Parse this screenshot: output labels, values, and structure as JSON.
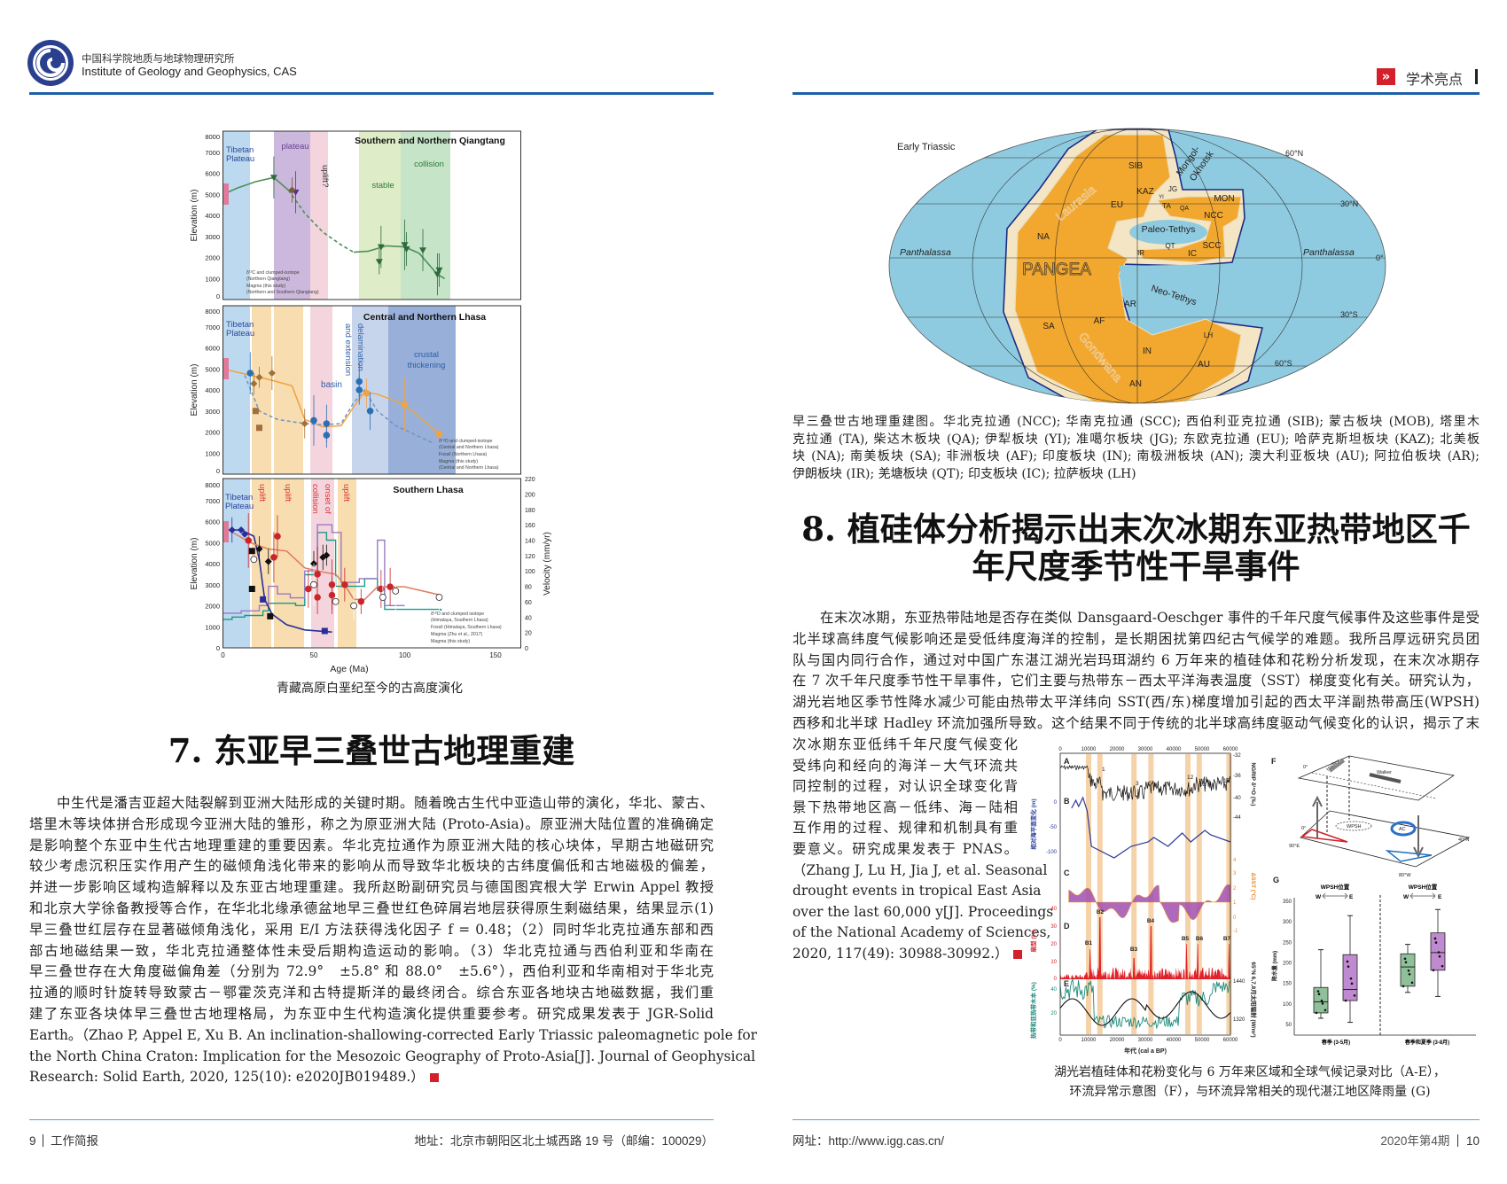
{
  "left": {
    "header": {
      "org_cn": "中国科学院地质与地球物理研究所",
      "org_en": "Institute of Geology and Geophysics, CAS"
    },
    "figure": {
      "elevation_ticks": [
        "0",
        "1000",
        "2000",
        "3000",
        "4000",
        "5000",
        "6000",
        "7000",
        "8000"
      ],
      "velocity_ticks": [
        "0",
        "20",
        "40",
        "60",
        "80",
        "100",
        "120",
        "140",
        "160",
        "180",
        "200",
        "220"
      ],
      "age_ticks": [
        "0",
        "50",
        "100",
        "150"
      ],
      "ylabel": "Elevation (m)",
      "xlabel": "Age (Ma)",
      "velocity_label": "Velocity (mm/yr)",
      "panel1": {
        "title": "Southern and Northern Qiangtang",
        "tp1": "Tibetan",
        "tp2": "Plateau",
        "plateau": "plateau",
        "uplift": "uplift?",
        "stable": "stable",
        "collision": "collision",
        "legend": [
          "δ¹³C and clumped-isotope",
          "(Northern Qiangtang)",
          "Magma (this study)",
          "(Northern and Southern Qiangtang)"
        ]
      },
      "panel2": {
        "title": "Central and Northern Lhasa",
        "tp1": "Tibetan",
        "tp2": "Plateau",
        "basin": "basin",
        "delam1": "delamination",
        "delam2": "and extension",
        "crust1": "crustal",
        "crust2": "thickening",
        "legend": [
          "δ¹⁸O and clumped-isotope",
          "(Central and Northern Lhasa)",
          "Fossil (Northern Lhasa)",
          "Magma (this study)",
          "(Central and Northern Lhasa)"
        ]
      },
      "panel3": {
        "title": "Southern Lhasa",
        "tp1": "Tibetan",
        "tp2": "Plateau",
        "uplift": "uplift",
        "onset1": "onset of",
        "onset2": "collision",
        "legend": [
          "δ¹⁸O and clumped isotope",
          "(Himalaya, Southern Lhasa)",
          "Fossil (Himalaya, Southern Lhasa)",
          "Magma (Zhu et al., 2017)",
          "Magma (this study)"
        ]
      }
    },
    "caption": "青藏高原白垩纪至今的古高度演化",
    "heading": "7. 东亚早三叠世古地理重建",
    "paragraph": [
      "中生代是潘吉亚超大陆裂解到亚洲大陆形成的关键时期。随着晚古生代中亚造山带的演化，华北、蒙古、",
      "塔里木等块体拼合形成现今亚洲大陆的雏形，称之为原亚洲大陆 (Proto-Asia)。原亚洲大陆位置的准确确定",
      "是影响整个东亚中生代古地理重建的重要因素。华北克拉通作为原亚洲大陆的核心块体，早期古地磁研究",
      "较少考虑沉积压实作用产生的磁倾角浅化带来的影响从而导致华北板块的古纬度偏低和古地磁极的偏差，",
      "并进一步影响区域构造解释以及东亚古地理重建。我所赵盼副研究员与德国图宾根大学 Erwin Appel 教授",
      "和北京大学徐备教授等合作，在华北北缘承德盆地早三叠世红色碎屑岩地层获得原生剩磁结果，结果显示(1)",
      "早三叠世红层存在显著磁倾角浅化，采用 E/I 方法获得浅化因子 f = 0.48；（2）同时华北克拉通东部和西",
      "部古地磁结果一致，华北克拉通整体性未受后期构造运动的影响。（3）华北克拉通与西伯利亚和华南在",
      "早三叠世存在大角度磁偏角差（分别为 72.9°　±5.8° 和 88.0°　±5.6°），西伯利亚和华南相对于华北克",
      "拉通的顺时针旋转导致蒙古－鄂霍茨克洋和古特提斯洋的最终闭合。综合东亚各地块古地磁数据，我们重",
      "建了东亚各块体早三叠世古地理格局，为东亚中生代构造演化提供重要参考。研究成果发表于 JGR-Solid",
      "Earth。（Zhao P, Appel E, Xu B. An inclination-shallowing-corrected Early Triassic paleomagnetic pole for",
      "the North China Craton: Implication for the Mesozoic Geography of Proto-Asia[J]. Journal of Geophysical",
      "Research: Solid Earth, 2020, 125(10): e2020JB019489.）"
    ],
    "footer": {
      "page_number": "9",
      "section": "工作简报",
      "address": "地址：北京市朝阳区北土城西路 19 号（邮编：100029）"
    }
  },
  "right": {
    "header": {
      "section": "学术亮点",
      "icon": "double-chevron-right-icon",
      "accent_color": "#d3202a"
    },
    "map": {
      "title": "Early Triassic",
      "latitudes": [
        "60°N",
        "30°N",
        "0°",
        "30°S",
        "60°S"
      ],
      "oceans": [
        "Panthalassa",
        "Panthalassa",
        "Paleo-Tethys",
        "Neo-Tethys",
        "Mongol-",
        "Okhotsk"
      ],
      "supercontinents": [
        "PANGEA",
        "Laurasia",
        "Gondwana"
      ],
      "blocks": [
        "SIB",
        "KAZ",
        "YI",
        "JG",
        "TA",
        "QA",
        "MON",
        "NCC",
        "EU",
        "NA",
        "SCC",
        "IR",
        "QT",
        "IC",
        "AR",
        "SA",
        "AF",
        "IN",
        "AU",
        "AN",
        "LH"
      ]
    },
    "map_caption": [
      "早三叠世古地理重建图。华北克拉通 (NCC); 华南克拉通 (SCC); 西伯利亚克拉通 (SIB); 蒙古板块 (MOB), 塔里木",
      "克拉通 (TA), 柴达木板块 (QA); 伊犁板块 (YI); 准噶尔板块 (JG); 东欧克拉通 (EU); 哈萨克斯坦板块 (KAZ); 北美板",
      "块 (NA); 南美板块 (SA); 非洲板块 (AF); 印度板块 (IN); 南极洲板块 (AN); 澳大利亚板块 (AU); 阿拉伯板块 (AR);",
      "伊朗板块 (IR); 羌塘板块 (QT); 印支板块 (IC); 拉萨板块 (LH)"
    ],
    "heading": [
      "8. 植硅体分析揭示出末次冰期东亚热带地区千",
      "年尺度季节性干旱事件"
    ],
    "paragraph": [
      "在末次冰期，东亚热带陆地是否存在类似 Dansgaard-Oeschger 事件的千年尺度气候事件及这些事件是受",
      "北半球高纬度气候影响还是受低纬度海洋的控制，是长期困扰第四纪古气候学的难题。我所吕厚远研究员团",
      "队与国内同行合作，通过对中国广东湛江湖光岩玛珥湖约 6 万年来的植硅体和花粉分析发现，在末次冰期存",
      "在 7 次千年尺度季节性干旱事件，它们主要与热带东－西太平洋海表温度（SST）梯度变化有关。研究认为，",
      "湖光岩地区季节性降水减少可能由热带太平洋纬向 SST(西/东)梯度增加引起的西太平洋副热带高压(WPSH)",
      "西移和北半球 Hadley 环流加强所导致。这个结果不同于传统的北半球高纬度驱动气候变化的认识，揭示了末"
    ],
    "column": [
      "次冰期东亚低纬千年尺度气候变化",
      "受纬向和经向的海洋－大气环流共",
      "同控制的过程，对认识全球变化背",
      "景下热带地区高－低纬、海－陆相",
      "互作用的过程、规律和机制具有重",
      "要意义。研究成果发表于 PNAS。",
      "（Zhang J, Lu H, Jia J, et al. Seasonal",
      "drought events in tropical East Asia",
      "over the last 60,000 y[J]. Proceedings",
      "of the National Academy of Sciences,",
      "2020, 117(49): 30988-30992.）"
    ],
    "figure": {
      "x_ticks": [
        "0",
        "10000",
        "20000",
        "30000",
        "40000",
        "50000",
        "60000"
      ],
      "xlabel": "年代 (cal a BP)",
      "panels": [
        "A",
        "B",
        "C",
        "D",
        "E",
        "F",
        "G"
      ],
      "events": [
        "1",
        "3",
        "5",
        "12",
        "13",
        "17"
      ],
      "drought_events": [
        "B1",
        "B2",
        "B3",
        "B4",
        "B5",
        "B6",
        "B7"
      ],
      "sea_level_ticks": [
        "0",
        "-50",
        "-100"
      ],
      "sea_level_label": "相对海平面变化 (m)",
      "phytolith_ticks": [
        "40",
        "30",
        "20",
        "10",
        "0"
      ],
      "phytolith_label": "扇型 (%)",
      "woody_ticks": [
        "40",
        "20"
      ],
      "woody_label": "热带和亚热带木本 (%)",
      "ngrip_ticks": [
        "-32",
        "-36",
        "-40",
        "-44"
      ],
      "ngrip_label": "NGRIP δ¹⁸O (‰)",
      "sst_ticks": [
        "4",
        "3",
        "2",
        "1",
        "0",
        "-1"
      ],
      "sst_label": "ΔSST (°C)",
      "insolation_ticks": [
        "1440",
        "1320"
      ],
      "insolation_label": "65°N 6,7,8月太阳辐射 (W/m²)",
      "diagram": {
        "hadley": "Hadley",
        "walker": "Walker",
        "wpsh": "WPSH",
        "ac": "AC",
        "lat0a": "0°",
        "lat0b": "0°",
        "lon90e": "90°E",
        "lat40n": "40°N",
        "lon80w": "80°W"
      },
      "boxplot": {
        "ylabel": "降水量 (mm)",
        "y_ticks": [
          "350",
          "300",
          "250",
          "200",
          "150",
          "100",
          "50"
        ],
        "group_title": "WPSH位置",
        "w": "W",
        "e": "E",
        "groups": [
          "春季 (3-5月)",
          "春季和夏季 (3-8月)"
        ],
        "boxes": [
          {
            "position": "W",
            "min": 65,
            "q1": 78,
            "median": 105,
            "q3": 140,
            "max": 232
          },
          {
            "position": "E",
            "min": 55,
            "q1": 108,
            "median": 135,
            "q3": 220,
            "max": 315
          },
          {
            "position": "W",
            "min": 128,
            "q1": 143,
            "median": 190,
            "q3": 222,
            "max": 245
          },
          {
            "position": "E",
            "min": 118,
            "q1": 182,
            "median": 225,
            "q3": 273,
            "max": 330
          }
        ]
      }
    },
    "caption": [
      "湖光岩植硅体和花粉变化与 6 万年来区域和全球气候记录对比（A-E），",
      "环流异常示意图（F），与环流异常相关的现代湛江地区降雨量 (G)"
    ],
    "footer": {
      "website": "网址：http://www.igg.cas.cn/",
      "issue": "2020年第4期",
      "page_number": "10"
    }
  }
}
